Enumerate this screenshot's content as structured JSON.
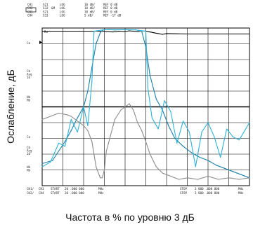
{
  "chart_data": {
    "type": "line",
    "title": "",
    "xlabel": "Частота в % по уровню 3 дБ",
    "ylabel": "Ослабление, дБ",
    "xlim": [
      0,
      1
    ],
    "ylim": [
      -100,
      0
    ],
    "grid": true,
    "header_rows": [
      {
        "ch": "CH1",
        "param": "S21",
        "flag": "",
        "fmt": "LOG",
        "scale": "10 dB/",
        "ref": "REF 0 dB"
      },
      {
        "ch": "CH2",
        "param": "S32",
        "flag": "&M",
        "fmt": "LOG",
        "scale": "10 dB/",
        "ref": "REF 0 dB"
      },
      {
        "ch": "CH3",
        "param": "S21",
        "flag": "",
        "fmt": "LOG",
        "scale": "10 dB/",
        "ref": "REF 0 dB"
      },
      {
        "ch": "CH4",
        "param": "S33",
        "flag": "",
        "fmt": "LOG",
        "scale": "5 dB/",
        "ref": "REF -17 dB"
      }
    ],
    "left_labels": [
      "Ca",
      "Cb\nAvg\n16",
      "Hb\nHb",
      "Ca",
      "Cb\nAvg\n16",
      "Hb\nHb"
    ],
    "top_marker": "Ru",
    "footer_rows": [
      {
        "ch": "CH1/",
        "ch2": "CH3",
        "key": "START",
        "value": "20 .000  000",
        "unit": "MHz",
        "stop_key": "STOP",
        "stop_value": "3  000 .000  000",
        "stop_unit": "MHz"
      },
      {
        "ch": "CH2/",
        "ch2": "CH4",
        "key": "START",
        "value": "20 .000  000",
        "unit": "MHz",
        "stop_key": "STOP",
        "stop_value": "3  000 .000  000",
        "stop_unit": "MHz"
      }
    ],
    "series": [
      {
        "color": "#000000",
        "x": [
          0.0,
          0.3,
          0.34,
          0.37,
          0.4,
          0.42,
          0.44,
          0.46,
          0.48,
          0.5,
          0.52,
          0.54,
          0.56,
          0.58,
          0.6,
          0.7,
          1.0
        ],
        "y": [
          -2,
          -2,
          -2.5,
          -2,
          -2.2,
          -1.8,
          -2,
          -2.2,
          -1.8,
          -2,
          -2.5,
          -3,
          -3.5,
          -4,
          -3.5,
          -3.8,
          -3.8
        ]
      },
      {
        "color": "#1a7fa8",
        "x": [
          0.0,
          0.05,
          0.08,
          0.11,
          0.14,
          0.17,
          0.2,
          0.22,
          0.24,
          0.26,
          0.28,
          0.29,
          0.3,
          0.32,
          0.35,
          0.4,
          0.45,
          0.48,
          0.5,
          0.52,
          0.55,
          0.58,
          0.61,
          0.64,
          0.68,
          0.72,
          0.76,
          0.8,
          0.84,
          0.88,
          0.92,
          0.96,
          1.0
        ],
        "y": [
          -86,
          -84,
          -78,
          -72,
          -65,
          -57,
          -50,
          -40,
          -25,
          -10,
          -3,
          -1.5,
          -1,
          -1,
          -1.2,
          -1,
          -1.1,
          -2,
          -12,
          -30,
          -45,
          -52,
          -62,
          -70,
          -75,
          -79,
          -82,
          -84,
          -87,
          -89,
          -91,
          -93,
          -95
        ]
      },
      {
        "color": "#2bb2d6",
        "x": [
          0.0,
          0.04,
          0.08,
          0.11,
          0.14,
          0.17,
          0.2,
          0.22,
          0.24,
          0.25,
          0.3,
          0.35,
          0.4,
          0.45,
          0.5,
          0.51,
          0.53,
          0.56,
          0.59,
          0.62,
          0.65,
          0.68,
          0.71,
          0.74,
          0.77,
          0.8,
          0.83,
          0.86,
          0.89,
          0.92,
          0.95,
          1.0
        ],
        "y": [
          -88,
          -85,
          -73,
          -75,
          -58,
          -66,
          -50,
          -62,
          -34,
          -2,
          -1,
          -1,
          -1,
          -1.2,
          -2,
          -38,
          -57,
          -64,
          -46,
          -53,
          -73,
          -59,
          -66,
          -88,
          -66,
          -60,
          -69,
          -82,
          -64,
          -69,
          -71,
          -60
        ]
      },
      {
        "color": "#8a8a8a",
        "x": [
          0.0,
          0.08,
          0.12,
          0.14,
          0.16,
          0.18,
          0.2,
          0.22,
          0.24,
          0.26,
          0.28,
          0.29,
          0.3,
          0.31,
          0.33,
          0.35,
          0.38,
          0.4,
          0.42,
          0.44,
          0.46,
          0.48,
          0.5,
          0.52,
          0.55,
          0.58,
          0.62,
          0.66,
          0.7,
          0.75,
          0.8,
          0.85,
          0.9,
          0.95,
          1.0
        ],
        "y": [
          -58,
          -54,
          -55,
          -56,
          -58,
          -60,
          -62,
          -65,
          -72,
          -88,
          -95,
          -95,
          -90,
          -78,
          -68,
          -58,
          -52,
          -50,
          -48,
          -52,
          -60,
          -65,
          -72,
          -80,
          -88,
          -92,
          -94,
          -96,
          -95,
          -96,
          -94,
          -96,
          -95,
          -96,
          -95
        ]
      }
    ]
  }
}
